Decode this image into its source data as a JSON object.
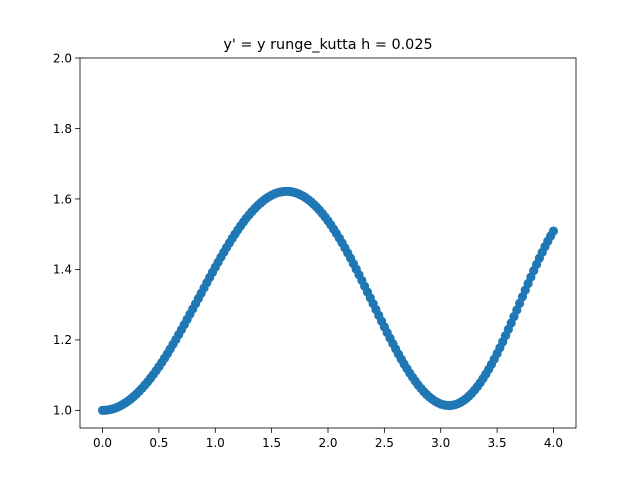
{
  "chart_data": {
    "type": "scatter",
    "title": "y' = y runge_kutta h = 0.025",
    "xlabel": "",
    "ylabel": "",
    "xlim": [
      -0.2,
      4.2
    ],
    "ylim": [
      0.95,
      2.0
    ],
    "x_ticks": [
      0.0,
      0.5,
      1.0,
      1.5,
      2.0,
      2.5,
      3.0,
      3.5,
      4.0
    ],
    "x_tick_labels": [
      "0.0",
      "0.5",
      "1.0",
      "1.5",
      "2.0",
      "2.5",
      "3.0",
      "3.5",
      "4.0"
    ],
    "y_ticks": [
      1.0,
      1.2,
      1.4,
      1.6,
      1.8,
      2.0
    ],
    "y_tick_labels": [
      "1.0",
      "1.2",
      "1.4",
      "1.6",
      "1.8",
      "2.0"
    ],
    "grid": false,
    "legend": "none",
    "color": "#1f77b4",
    "series": [
      {
        "x": [
          0,
          0.025,
          0.05,
          0.075,
          0.1,
          0.125,
          0.15,
          0.175,
          0.2,
          0.225,
          0.25,
          0.275,
          0.3,
          0.325,
          0.35,
          0.375,
          0.4,
          0.425,
          0.45,
          0.475,
          0.5,
          0.525,
          0.55,
          0.575,
          0.6,
          0.625,
          0.65,
          0.675,
          0.7,
          0.725,
          0.75,
          0.775,
          0.8,
          0.825,
          0.85,
          0.875,
          0.9,
          0.925,
          0.95,
          0.975,
          1,
          1.025,
          1.05,
          1.075,
          1.1,
          1.125,
          1.15,
          1.175,
          1.2,
          1.225,
          1.25,
          1.275,
          1.3,
          1.325,
          1.35,
          1.375,
          1.4,
          1.425,
          1.45,
          1.475,
          1.5,
          1.525,
          1.55,
          1.575,
          1.6,
          1.625,
          1.65,
          1.675,
          1.7,
          1.725,
          1.75,
          1.775,
          1.8,
          1.825,
          1.85,
          1.875,
          1.9,
          1.925,
          1.95,
          1.975,
          2,
          2.025,
          2.05,
          2.075,
          2.1,
          2.125,
          2.15,
          2.175,
          2.2,
          2.225,
          2.25,
          2.275,
          2.3,
          2.325,
          2.35,
          2.375,
          2.4,
          2.425,
          2.45,
          2.475,
          2.5,
          2.525,
          2.55,
          2.575,
          2.6,
          2.625,
          2.65,
          2.675,
          2.7,
          2.725,
          2.75,
          2.775,
          2.8,
          2.825,
          2.85,
          2.875,
          2.9,
          2.925,
          2.95,
          2.975,
          3,
          3.025,
          3.05,
          3.075,
          3.1,
          3.125,
          3.15,
          3.175,
          3.2,
          3.225,
          3.25,
          3.275,
          3.3,
          3.325,
          3.35,
          3.375,
          3.4,
          3.425,
          3.45,
          3.475,
          3.5,
          3.525,
          3.55,
          3.575,
          3.6,
          3.625,
          3.65,
          3.675,
          3.7,
          3.725,
          3.75,
          3.775,
          3.8,
          3.825,
          3.85,
          3.875,
          3.9,
          3.925,
          3.95,
          3.975,
          4
        ],
        "y": [
          1.0,
          1.0003,
          1.0013,
          1.0029,
          1.0052,
          1.0082,
          1.0117,
          1.016,
          1.0208,
          1.0263,
          1.0324,
          1.0391,
          1.0463,
          1.0542,
          1.0626,
          1.0716,
          1.081,
          1.091,
          1.1015,
          1.1125,
          1.124,
          1.1359,
          1.1481,
          1.1608,
          1.1739,
          1.1873,
          1.201,
          1.2149,
          1.2291,
          1.2435,
          1.2581,
          1.2728,
          1.2876,
          1.3025,
          1.3175,
          1.3324,
          1.3474,
          1.3622,
          1.377,
          1.3917,
          1.4062,
          1.4205,
          1.4345,
          1.4483,
          1.4618,
          1.475,
          1.4878,
          1.5002,
          1.5121,
          1.5236,
          1.5346,
          1.5451,
          1.5549,
          1.5642,
          1.5729,
          1.5809,
          1.5883,
          1.5949,
          1.6009,
          1.6061,
          1.6106,
          1.6143,
          1.6173,
          1.6195,
          1.6209,
          1.6216,
          1.6214,
          1.6204,
          1.6187,
          1.6161,
          1.6128,
          1.6087,
          1.6038,
          1.5981,
          1.5916,
          1.5844,
          1.5765,
          1.5679,
          1.5585,
          1.5485,
          1.5378,
          1.5264,
          1.5145,
          1.5019,
          1.4889,
          1.4753,
          1.4612,
          1.4466,
          1.4317,
          1.4164,
          1.4008,
          1.3849,
          1.3688,
          1.3524,
          1.336,
          1.3194,
          1.3028,
          1.2862,
          1.2696,
          1.2532,
          1.2369,
          1.2208,
          1.205,
          1.1895,
          1.1744,
          1.1596,
          1.1454,
          1.1316,
          1.1184,
          1.1058,
          1.0939,
          1.0826,
          1.0721,
          1.0623,
          1.0533,
          1.0452,
          1.0379,
          1.0315,
          1.0261,
          1.0216,
          1.0181,
          1.0156,
          1.0142,
          1.0138,
          1.0144,
          1.0161,
          1.0189,
          1.0227,
          1.0276,
          1.0335,
          1.0405,
          1.0484,
          1.0574,
          1.0674,
          1.0783,
          1.0901,
          1.1028,
          1.1163,
          1.1306,
          1.1456,
          1.1614,
          1.1777,
          1.1946,
          1.212,
          1.2298,
          1.248,
          1.2664,
          1.285,
          1.3038,
          1.3226,
          1.3413,
          1.36,
          1.3784,
          1.3965,
          1.4143,
          1.4317,
          1.4485,
          1.4647,
          1.4802,
          1.495,
          1.5089
        ]
      }
    ]
  }
}
